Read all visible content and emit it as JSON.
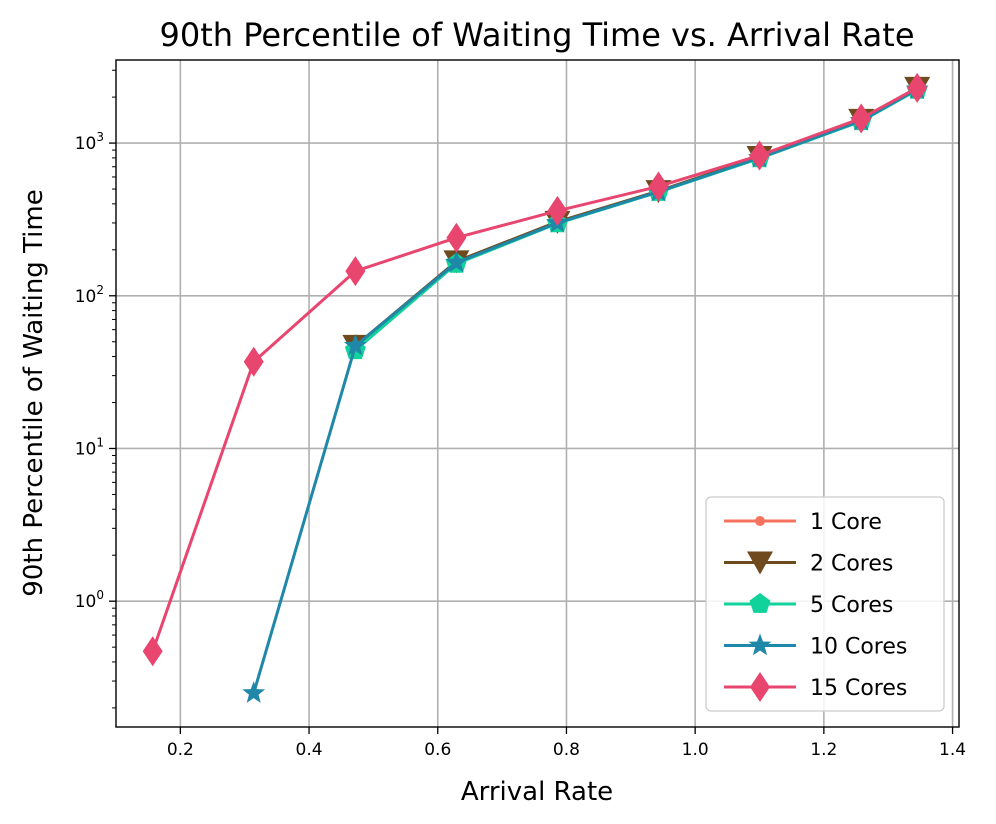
{
  "chart_data": {
    "type": "line",
    "title": "90th Percentile of Waiting Time vs. Arrival Rate",
    "xlabel": "Arrival Rate",
    "ylabel": "90th Percentile of Waiting Time",
    "xscale": "linear",
    "yscale": "log",
    "xlim": [
      0.1,
      1.41
    ],
    "ylim": [
      0.15,
      3500
    ],
    "grid": true,
    "legend_position": "lower-right",
    "x_ticks": [
      {
        "value": 0.2,
        "label": "0.2"
      },
      {
        "value": 0.4,
        "label": "0.4"
      },
      {
        "value": 0.6,
        "label": "0.6"
      },
      {
        "value": 0.8,
        "label": "0.8"
      },
      {
        "value": 1.0,
        "label": "1.0"
      },
      {
        "value": 1.2,
        "label": "1.2"
      },
      {
        "value": 1.4,
        "label": "1.4"
      }
    ],
    "y_ticks": [
      {
        "value": 1,
        "base": "10",
        "exp": "0"
      },
      {
        "value": 10,
        "base": "10",
        "exp": "1"
      },
      {
        "value": 100,
        "base": "10",
        "exp": "2"
      },
      {
        "value": 1000,
        "base": "10",
        "exp": "3"
      }
    ],
    "series": [
      {
        "name": "1 Core",
        "color": "#f4735f",
        "marker": "circle",
        "x": [
          0.472,
          0.629,
          0.786,
          0.943,
          1.1,
          1.258,
          1.345
        ],
        "y": [
          46,
          165,
          300,
          480,
          800,
          1400,
          2250
        ]
      },
      {
        "name": "2 Cores",
        "color": "#6e4a1e",
        "marker": "triangle-down",
        "x": [
          0.472,
          0.629,
          0.786,
          0.943,
          1.1,
          1.258,
          1.345
        ],
        "y": [
          47,
          168,
          305,
          485,
          810,
          1420,
          2300
        ]
      },
      {
        "name": "5 Cores",
        "color": "#10d29a",
        "marker": "pentagon",
        "x": [
          0.472,
          0.629,
          0.786,
          0.943,
          1.1,
          1.258,
          1.345
        ],
        "y": [
          44,
          162,
          298,
          478,
          795,
          1390,
          2230
        ]
      },
      {
        "name": "10 Cores",
        "color": "#1f87a8",
        "marker": "star",
        "x": [
          0.314,
          0.472,
          0.629,
          0.786,
          0.943,
          1.1,
          1.258,
          1.345
        ],
        "y": [
          0.25,
          47,
          165,
          300,
          480,
          800,
          1400,
          2250
        ]
      },
      {
        "name": "15 Cores",
        "color": "#e8456f",
        "marker": "diamond",
        "x": [
          0.157,
          0.314,
          0.472,
          0.629,
          0.786,
          0.943,
          1.1,
          1.258,
          1.345
        ],
        "y": [
          0.47,
          37,
          145,
          240,
          360,
          520,
          830,
          1450,
          2300
        ]
      }
    ]
  }
}
